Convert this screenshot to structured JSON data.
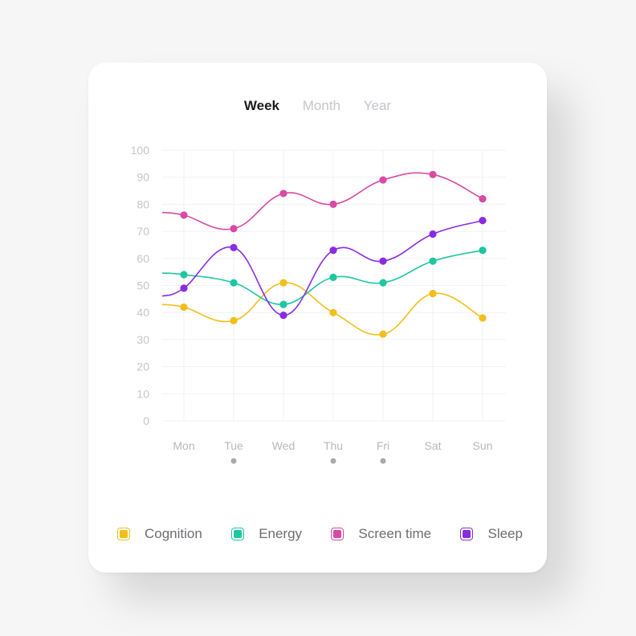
{
  "tabs": [
    {
      "label": "Week",
      "active": true
    },
    {
      "label": "Month",
      "active": false
    },
    {
      "label": "Year",
      "active": false
    }
  ],
  "chart_data": {
    "type": "line",
    "categories": [
      "Mon",
      "Tue",
      "Wed",
      "Thu",
      "Fri",
      "Sat",
      "Sun"
    ],
    "y_ticks": [
      0,
      10,
      20,
      30,
      40,
      50,
      60,
      70,
      80,
      90,
      100
    ],
    "ylim": [
      0,
      100
    ],
    "grid": true,
    "legend_position": "bottom",
    "day_indicators": [
      false,
      true,
      false,
      true,
      true,
      false,
      false
    ],
    "series": [
      {
        "name": "Cognition",
        "color": "#f2bf1a",
        "values": [
          42,
          37,
          51,
          40,
          32,
          47,
          38
        ]
      },
      {
        "name": "Energy",
        "color": "#1dc7a0",
        "values": [
          54,
          51,
          43,
          53,
          51,
          59,
          63
        ]
      },
      {
        "name": "Screen time",
        "color": "#d84aa6",
        "values": [
          76,
          71,
          84,
          80,
          89,
          91,
          82
        ]
      },
      {
        "name": "Sleep",
        "color": "#8a2be2",
        "values": [
          49,
          64,
          39,
          63,
          59,
          69,
          74
        ]
      }
    ]
  }
}
